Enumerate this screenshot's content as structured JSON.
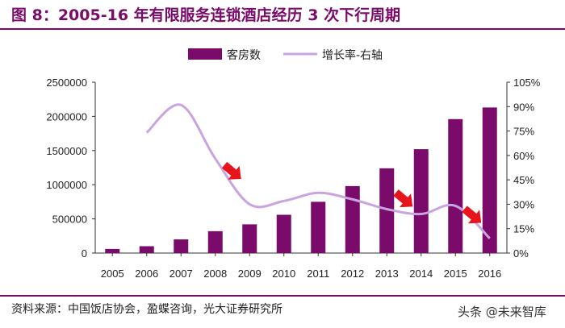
{
  "header": {
    "title": "图 8：2005-16 年有限服务连锁酒店经历 3 次下行周期"
  },
  "footer": {
    "source": "资料来源：中国饭店协会，盈蝶咨询，光大证券研究所",
    "watermark": "头条 @未来智库"
  },
  "colors": {
    "brand": "#7b0b6a",
    "bar": "#7b0b6a",
    "line": "#c9a4e0",
    "arrow": "#e8141c"
  },
  "chart_data": {
    "type": "bar",
    "categories": [
      "2005",
      "2006",
      "2007",
      "2008",
      "2009",
      "2010",
      "2011",
      "2012",
      "2013",
      "2014",
      "2015",
      "2016"
    ],
    "series": [
      {
        "name": "客房数",
        "type": "bar",
        "axis": "left",
        "values": [
          60000,
          100000,
          200000,
          320000,
          420000,
          560000,
          750000,
          980000,
          1240000,
          1520000,
          1960000,
          2130000
        ]
      },
      {
        "name": "增长率-右轴",
        "type": "line",
        "axis": "right",
        "values": [
          null,
          74,
          91,
          58,
          30,
          32,
          37,
          33,
          27,
          24,
          29,
          9
        ]
      }
    ],
    "ylim": [
      0,
      2500000
    ],
    "y_ticks": [
      "0",
      "500000",
      "1000000",
      "1500000",
      "2000000",
      "2500000"
    ],
    "y2lim": [
      0,
      105
    ],
    "y2_ticks": [
      "0%",
      "15%",
      "30%",
      "45%",
      "60%",
      "75%",
      "90%",
      "105%"
    ],
    "legend": "top-center",
    "grid": false,
    "annotations": [
      {
        "type": "arrow",
        "between": [
          "2008",
          "2009"
        ],
        "level": 50
      },
      {
        "type": "arrow",
        "between": [
          "2013",
          "2014"
        ],
        "level": 33
      },
      {
        "type": "arrow",
        "between": [
          "2015",
          "2016"
        ],
        "level": 23
      }
    ]
  }
}
